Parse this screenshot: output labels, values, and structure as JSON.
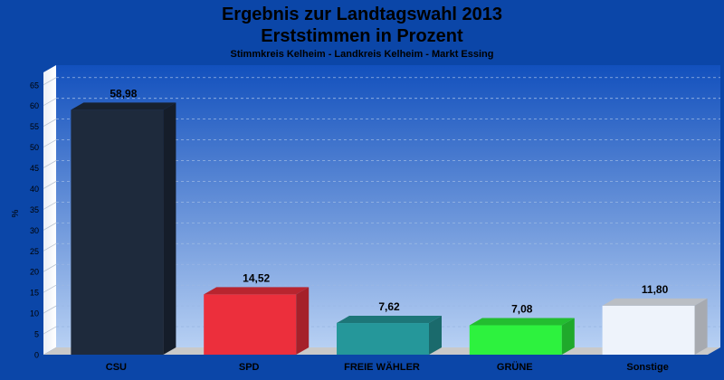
{
  "chart_data": {
    "type": "bar",
    "title": "Ergebnis zur Landtagswahl 2013",
    "title2": "Erststimmen in Prozent",
    "subtitle": "Stimmkreis Kelheim - Landkreis Kelheim - Markt Essing",
    "ylabel": "%",
    "xlabel": "",
    "ylim": [
      0,
      68
    ],
    "yticks": [
      "0",
      "5",
      "10",
      "15",
      "20",
      "25",
      "30",
      "35",
      "40",
      "45",
      "50",
      "55",
      "60",
      "65"
    ],
    "categories": [
      "CSU",
      "SPD",
      "FREIE WÄHLER",
      "GRÜNE",
      "Sonstige"
    ],
    "values": [
      58.98,
      14.52,
      7.62,
      7.08,
      11.8
    ],
    "value_labels": [
      "58,98",
      "14,52",
      "7,62",
      "7,08",
      "11,80"
    ],
    "colors": [
      "#1e2a3c",
      "#ec2f3c",
      "#25979a",
      "#2df23e",
      "#eef3fb"
    ],
    "grid": true,
    "legend": "none"
  }
}
